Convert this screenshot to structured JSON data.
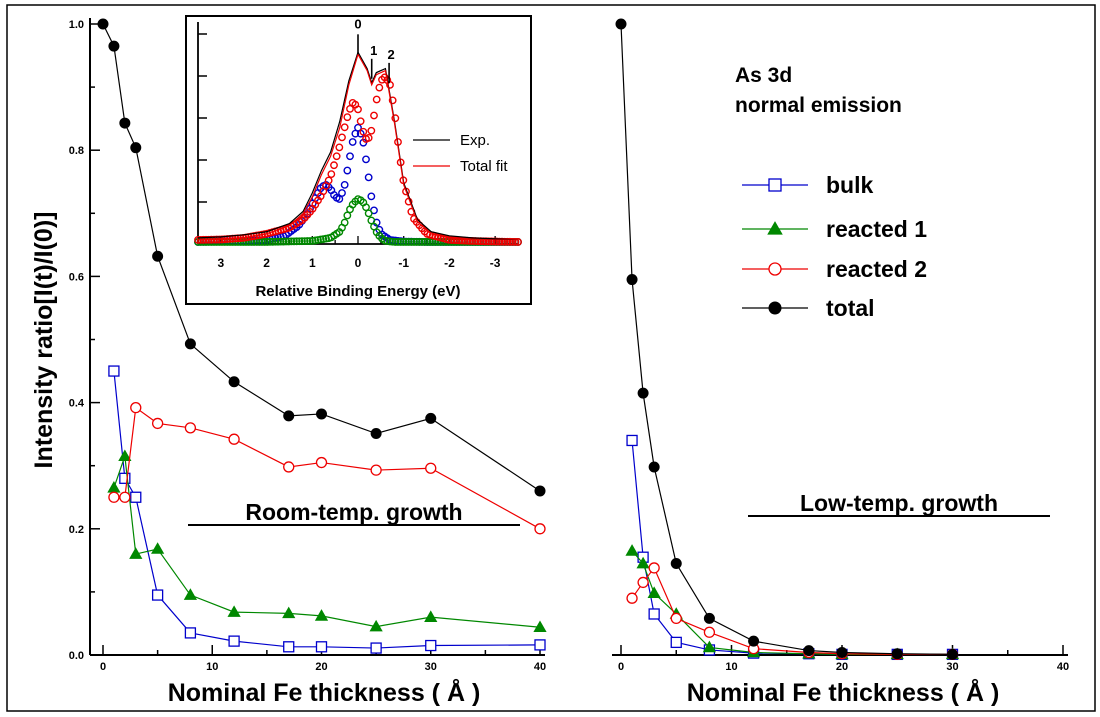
{
  "figure": {
    "title_lines": [
      "As 3d",
      "normal emission"
    ],
    "ylabel": "Intensity ratio[I(t)/I(0)]",
    "colors": {
      "bulk": "#0000cc",
      "reacted 1": "#008800",
      "reacted 2": "#ee0000",
      "total": "#000000"
    }
  },
  "chart_data": [
    {
      "type": "line",
      "panel": "left",
      "annotation": "Room-temp. growth",
      "xlabel": "Nominal Fe thickness ( Å )",
      "xlim": [
        0,
        40
      ],
      "ylim": [
        0,
        1.0
      ],
      "xticks": [
        "0",
        "10",
        "20",
        "30",
        "40"
      ],
      "yticks": [
        "0.0",
        "0.2",
        "0.4",
        "0.6",
        "0.8",
        "1.0"
      ],
      "legend_position": "top-right",
      "series": [
        {
          "name": "bulk",
          "marker": "square-open",
          "x": [
            1,
            2,
            3,
            5,
            8,
            12,
            17,
            20,
            25,
            30,
            40
          ],
          "y": [
            0.45,
            0.28,
            0.25,
            0.095,
            0.035,
            0.022,
            0.013,
            0.013,
            0.011,
            0.015,
            0.016
          ]
        },
        {
          "name": "reacted 1",
          "marker": "triangle-filled",
          "x": [
            1,
            2,
            3,
            5,
            8,
            12,
            17,
            20,
            25,
            30,
            40
          ],
          "y": [
            0.265,
            0.315,
            0.16,
            0.168,
            0.095,
            0.068,
            0.066,
            0.062,
            0.045,
            0.06,
            0.044
          ]
        },
        {
          "name": "reacted 2",
          "marker": "circle-open",
          "x": [
            1,
            2,
            3,
            5,
            8,
            12,
            17,
            20,
            25,
            30,
            40
          ],
          "y": [
            0.25,
            0.25,
            0.392,
            0.367,
            0.36,
            0.342,
            0.298,
            0.305,
            0.293,
            0.296,
            0.2
          ]
        },
        {
          "name": "total",
          "marker": "circle-filled",
          "x": [
            0,
            1,
            2,
            3,
            5,
            8,
            12,
            17,
            20,
            25,
            30,
            40
          ],
          "y": [
            1.0,
            0.965,
            0.843,
            0.804,
            0.632,
            0.493,
            0.433,
            0.379,
            0.382,
            0.351,
            0.375,
            0.26
          ]
        }
      ]
    },
    {
      "type": "line",
      "panel": "right",
      "annotation": "Low-temp. growth",
      "xlabel": "Nominal Fe thickness ( Å )",
      "xlim": [
        0,
        40
      ],
      "ylim": [
        0,
        1.0
      ],
      "xticks": [
        "0",
        "10",
        "20",
        "30",
        "40"
      ],
      "series": [
        {
          "name": "bulk",
          "marker": "square-open",
          "x": [
            1,
            2,
            3,
            5,
            8,
            12,
            17,
            20,
            25,
            30
          ],
          "y": [
            0.34,
            0.155,
            0.065,
            0.02,
            0.008,
            0.003,
            0.002,
            0.001,
            0.001,
            0.001
          ]
        },
        {
          "name": "reacted 1",
          "marker": "triangle-filled",
          "x": [
            1,
            2,
            3,
            5,
            8,
            12,
            17,
            20,
            25,
            30
          ],
          "y": [
            0.165,
            0.145,
            0.098,
            0.065,
            0.012,
            0.004,
            0.002,
            0.001,
            0.001,
            0.001
          ]
        },
        {
          "name": "reacted 2",
          "marker": "circle-open",
          "x": [
            1,
            2,
            3,
            5,
            8,
            12,
            17,
            20,
            25,
            30
          ],
          "y": [
            0.09,
            0.115,
            0.138,
            0.058,
            0.036,
            0.01,
            0.004,
            0.002,
            0.001,
            0.001
          ]
        },
        {
          "name": "total",
          "marker": "circle-filled",
          "x": [
            0,
            1,
            2,
            3,
            5,
            8,
            12,
            17,
            20,
            25,
            30
          ],
          "y": [
            1.0,
            0.595,
            0.415,
            0.298,
            0.145,
            0.058,
            0.022,
            0.007,
            0.004,
            0.002,
            0.001
          ]
        }
      ]
    },
    {
      "type": "line",
      "panel": "inset",
      "xlabel": "Relative Binding Energy (eV)",
      "xlim": [
        3.5,
        -3.5
      ],
      "ylim": [
        0,
        1.0
      ],
      "xticks": [
        "3",
        "2",
        "1",
        "0",
        "-1",
        "-2",
        "-3"
      ],
      "peak_labels": [
        {
          "text": "0",
          "x": 0.0,
          "y": 0.92
        },
        {
          "text": "1",
          "x": -0.3,
          "y": 0.8
        },
        {
          "text": "2",
          "x": -0.68,
          "y": 0.78
        }
      ],
      "legend": [
        "Exp.",
        "Total fit"
      ],
      "series": [
        {
          "name": "Exp.",
          "style": "line",
          "x": [
            3.5,
            3.0,
            2.5,
            2.0,
            1.5,
            1.2,
            1.0,
            0.8,
            0.6,
            0.4,
            0.2,
            0.0,
            -0.2,
            -0.3,
            -0.4,
            -0.6,
            -0.8,
            -1.0,
            -1.3,
            -1.6,
            -2.0,
            -2.5,
            -3.0,
            -3.5
          ],
          "y": [
            0.03,
            0.035,
            0.045,
            0.06,
            0.1,
            0.16,
            0.25,
            0.36,
            0.45,
            0.6,
            0.8,
            0.94,
            0.86,
            0.79,
            0.84,
            0.86,
            0.6,
            0.3,
            0.12,
            0.06,
            0.04,
            0.03,
            0.025,
            0.02
          ]
        },
        {
          "name": "Total fit",
          "style": "line",
          "x": [
            3.5,
            3.0,
            2.5,
            2.0,
            1.5,
            1.2,
            1.0,
            0.8,
            0.6,
            0.4,
            0.2,
            0.0,
            -0.2,
            -0.3,
            -0.4,
            -0.6,
            -0.8,
            -1.0,
            -1.3,
            -1.6,
            -2.0,
            -2.5,
            -3.0,
            -3.5
          ],
          "y": [
            0.02,
            0.025,
            0.03,
            0.05,
            0.09,
            0.15,
            0.23,
            0.34,
            0.43,
            0.57,
            0.78,
            0.93,
            0.85,
            0.78,
            0.83,
            0.85,
            0.59,
            0.29,
            0.11,
            0.05,
            0.03,
            0.02,
            0.02,
            0.02
          ]
        },
        {
          "name": "bulk",
          "style": "markers",
          "x": [
            3.5,
            3.0,
            2.5,
            2.0,
            1.6,
            1.3,
            1.1,
            0.9,
            0.8,
            0.7,
            0.6,
            0.5,
            0.4,
            0.3,
            0.2,
            0.1,
            0.0,
            -0.1,
            -0.2,
            -0.3,
            -0.4,
            -0.5,
            -0.7,
            -1.0,
            -1.5,
            -2.0,
            -2.5,
            -3.0,
            -3.5
          ],
          "y": [
            0.01,
            0.012,
            0.015,
            0.02,
            0.04,
            0.09,
            0.15,
            0.24,
            0.28,
            0.29,
            0.27,
            0.23,
            0.22,
            0.28,
            0.4,
            0.52,
            0.57,
            0.52,
            0.38,
            0.22,
            0.11,
            0.05,
            0.02,
            0.012,
            0.01,
            0.01,
            0.01,
            0.01,
            0.01
          ]
        },
        {
          "name": "reacted 1",
          "style": "markers",
          "x": [
            3.5,
            3.0,
            2.0,
            1.0,
            0.6,
            0.4,
            0.3,
            0.2,
            0.1,
            0.0,
            -0.1,
            -0.2,
            -0.3,
            -0.4,
            -0.5,
            -0.6,
            -0.8,
            -1.0,
            -2.0,
            -3.5
          ],
          "y": [
            0.01,
            0.01,
            0.01,
            0.015,
            0.03,
            0.06,
            0.1,
            0.16,
            0.2,
            0.22,
            0.21,
            0.17,
            0.11,
            0.06,
            0.03,
            0.015,
            0.01,
            0.01,
            0.01,
            0.01
          ]
        },
        {
          "name": "reacted 2",
          "style": "markers",
          "x": [
            3.5,
            3.0,
            2.5,
            2.0,
            1.5,
            1.2,
            1.0,
            0.8,
            0.6,
            0.4,
            0.2,
            0.1,
            0.0,
            -0.1,
            -0.2,
            -0.3,
            -0.4,
            -0.5,
            -0.6,
            -0.7,
            -0.8,
            -0.9,
            -1.0,
            -1.2,
            -1.5,
            -2.0,
            -2.5,
            -3.0,
            -3.5
          ],
          "y": [
            0.02,
            0.022,
            0.03,
            0.05,
            0.08,
            0.12,
            0.17,
            0.24,
            0.33,
            0.48,
            0.65,
            0.7,
            0.66,
            0.56,
            0.5,
            0.56,
            0.7,
            0.8,
            0.82,
            0.78,
            0.65,
            0.45,
            0.3,
            0.13,
            0.05,
            0.02,
            0.015,
            0.012,
            0.01
          ]
        }
      ]
    }
  ]
}
